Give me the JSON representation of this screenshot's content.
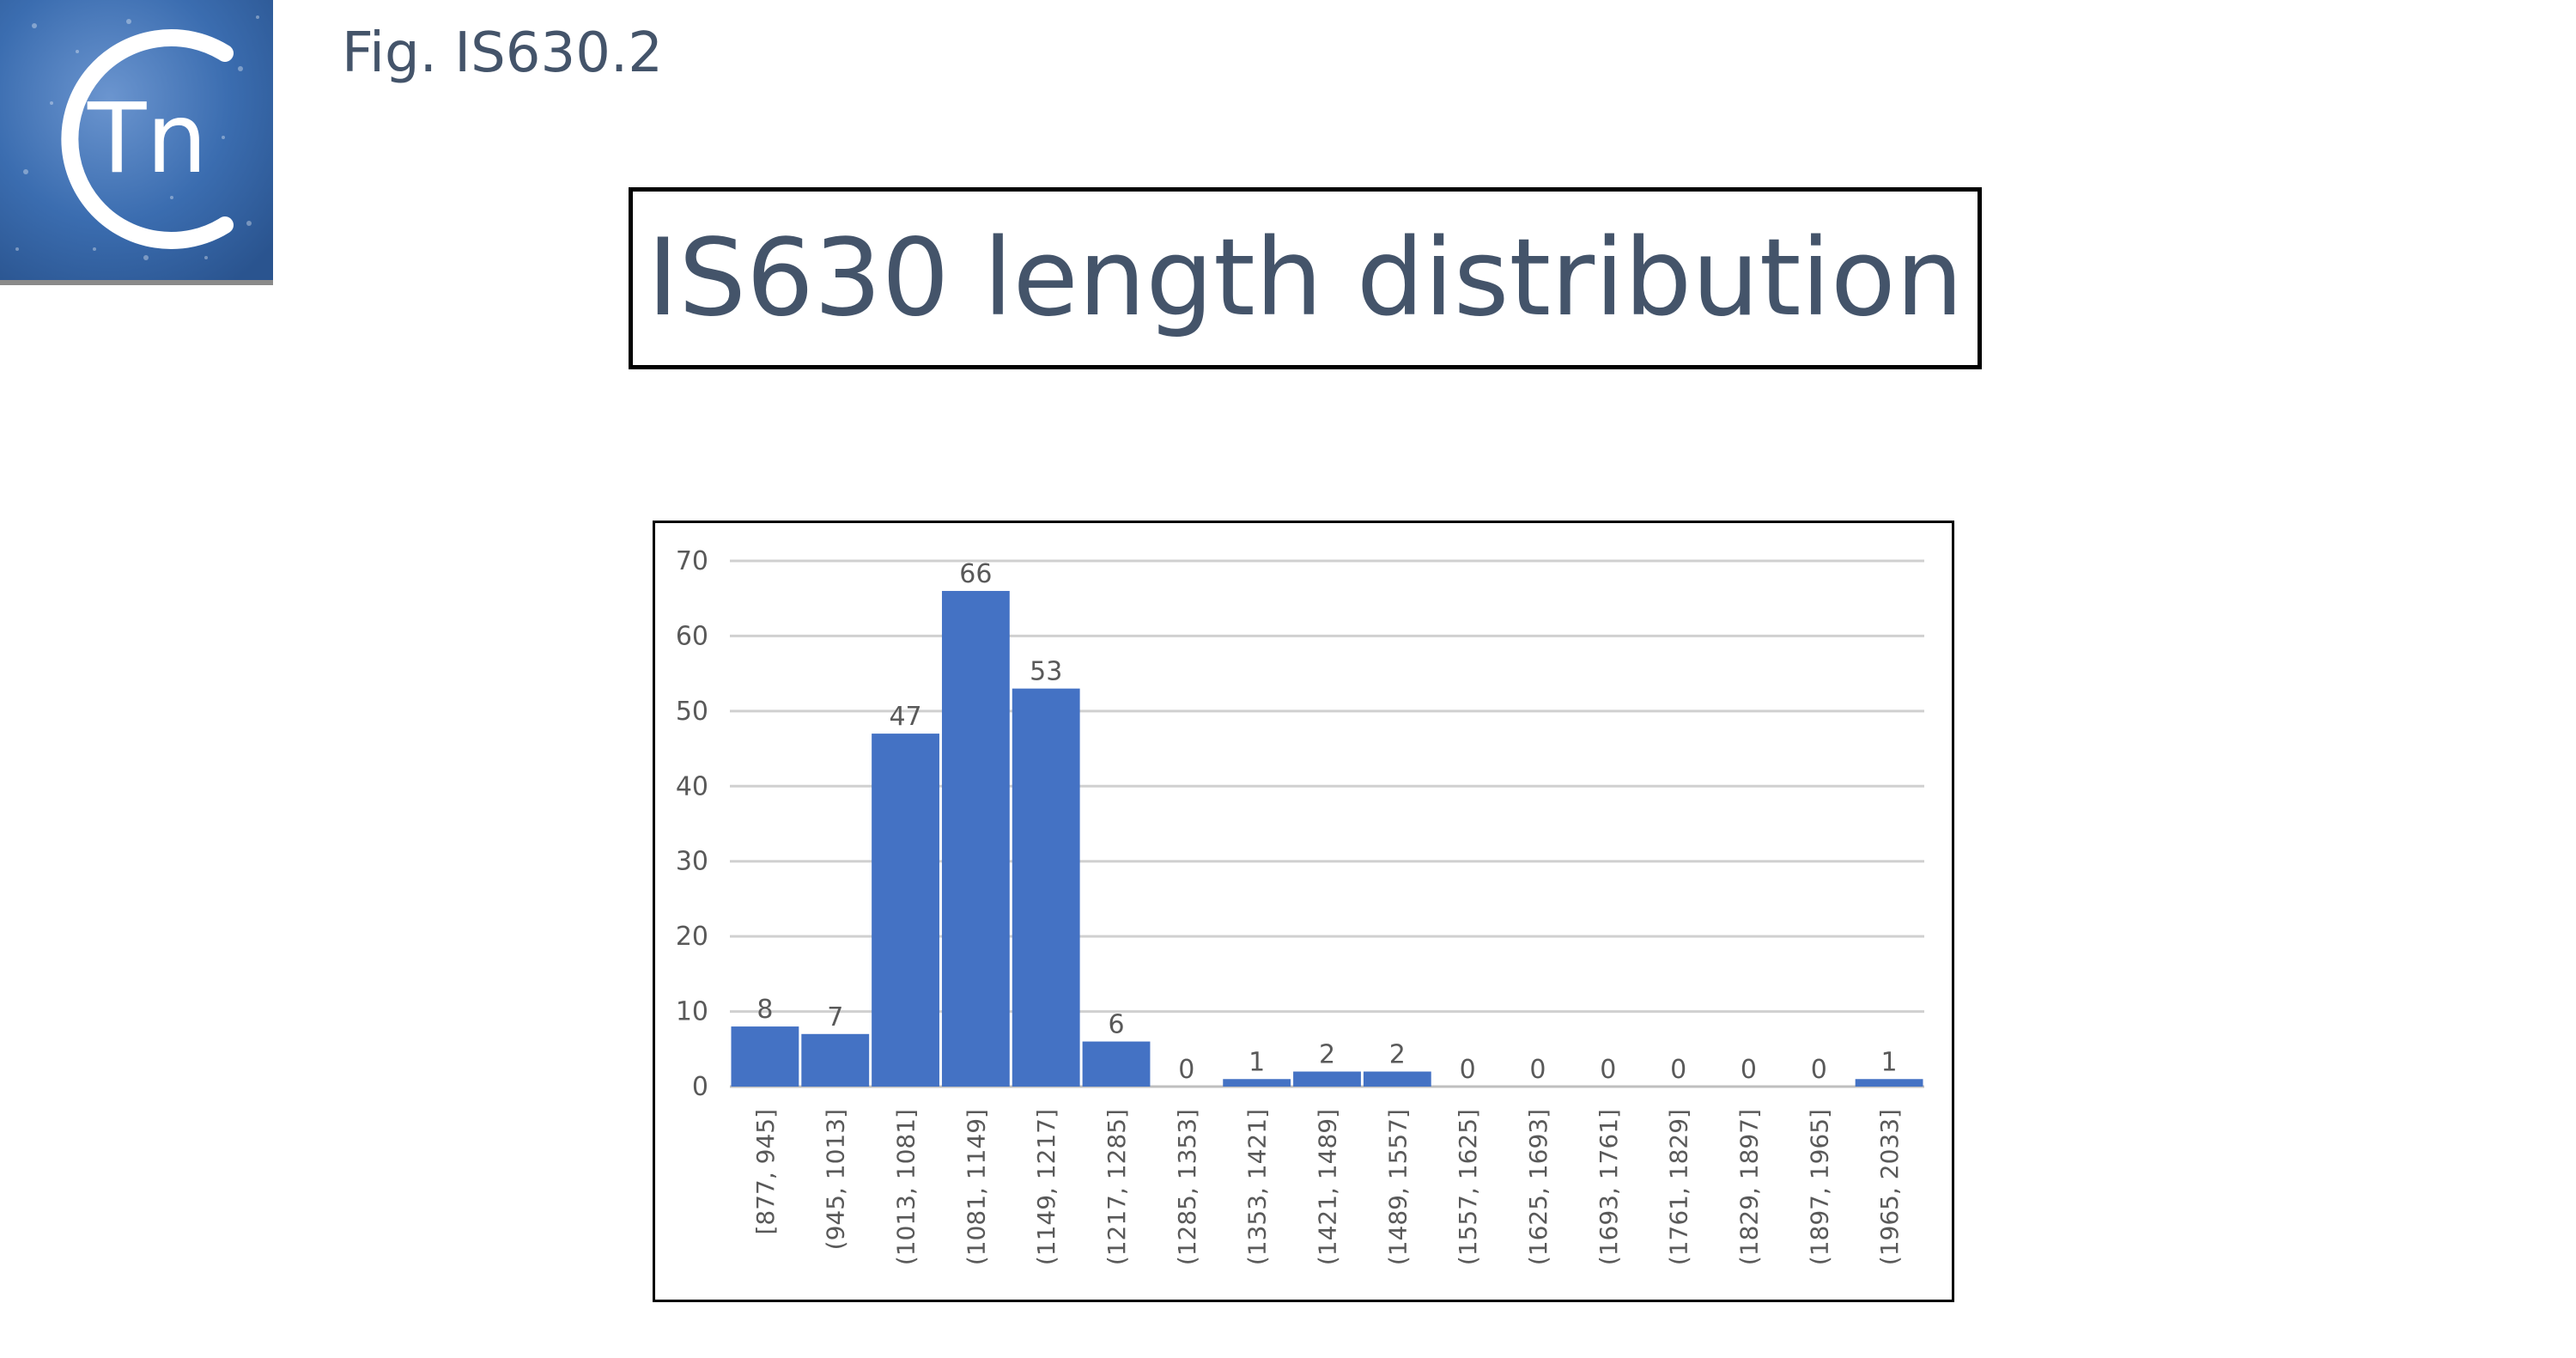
{
  "figure": {
    "label": "Fig. IS630.2",
    "logo_text": "Tn"
  },
  "chart_data": {
    "type": "bar",
    "title": "IS630 length distribution",
    "xlabel": "",
    "ylabel": "",
    "ylim": [
      0,
      70
    ],
    "yticks": [
      0,
      10,
      20,
      30,
      40,
      50,
      60,
      70
    ],
    "grid": true,
    "categories": [
      "[877, 945]",
      "(945, 1013]",
      "(1013, 1081]",
      "(1081, 1149]",
      "(1149, 1217]",
      "(1217, 1285]",
      "(1285, 1353]",
      "(1353, 1421]",
      "(1421, 1489]",
      "(1489, 1557]",
      "(1557, 1625]",
      "(1625, 1693]",
      "(1693, 1761]",
      "(1761, 1829]",
      "(1829, 1897]",
      "(1897, 1965]",
      "(1965, 2033]"
    ],
    "values": [
      8,
      7,
      47,
      66,
      53,
      6,
      0,
      1,
      2,
      2,
      0,
      0,
      0,
      0,
      0,
      0,
      1
    ],
    "bar_color": "#4472c4",
    "gridline_color": "#d0d0d0",
    "text_color": "#595959"
  },
  "colors": {
    "title_text": "#44546a",
    "logo_blue": "#3b6db0"
  }
}
